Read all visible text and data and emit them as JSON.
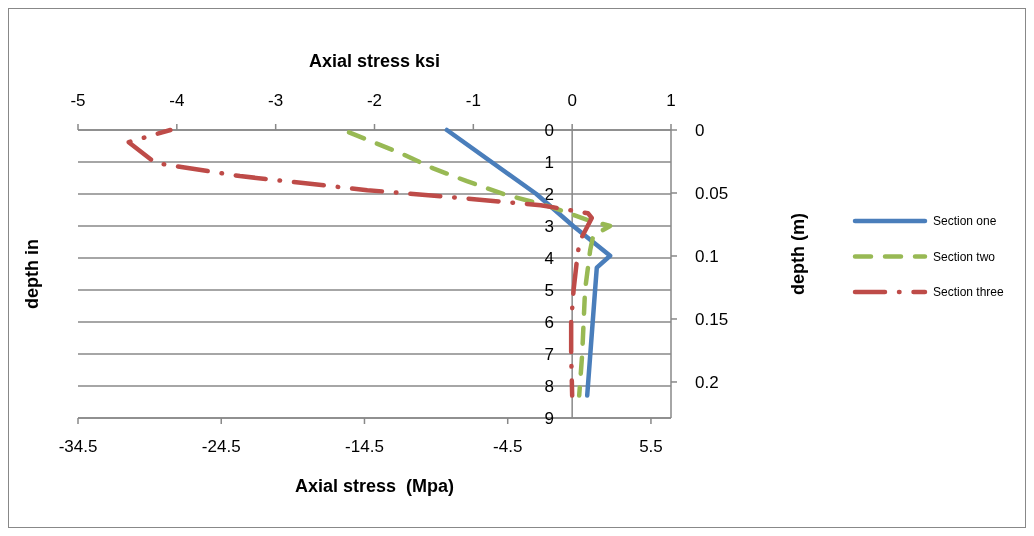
{
  "chart_data": {
    "type": "line",
    "xlabel": "Axial stress  (Mpa)",
    "x2label": "Axial stress ksi",
    "ylabel": "depth in",
    "y2label": "depth (m)",
    "xlim": [
      -34.5,
      6.9
    ],
    "xticks": [
      -34.5,
      -24.5,
      -14.5,
      -4.5,
      5.5
    ],
    "x2lim": [
      -5,
      1
    ],
    "x2ticks": [
      -5,
      -4,
      -3,
      -2,
      -1,
      0,
      1
    ],
    "ylim": [
      9,
      0
    ],
    "yticks": [
      0,
      1,
      2,
      3,
      4,
      5,
      6,
      7,
      8,
      9
    ],
    "y2lim": [
      0.2286,
      0
    ],
    "y2ticks": [
      0,
      0.05,
      0.1,
      0.15,
      0.2
    ],
    "grid": "y",
    "legend": "right",
    "series": [
      {
        "name": "Section one",
        "color": "#4a7ebb",
        "line_style": "solid",
        "x": [
          -8.75,
          -2.5,
          0.07,
          2.65,
          1.72,
          1.6,
          1.05
        ],
        "values": [
          0,
          2,
          3,
          3.93,
          4.3,
          5,
          8.3
        ]
      },
      {
        "name": "Section two",
        "color": "#98b954",
        "line_style": "dashed",
        "x": [
          -16,
          -12,
          -9.7,
          -7.35,
          -4.8,
          -1.5,
          1.0,
          2.65,
          1.47,
          1.26,
          0.9,
          0.7,
          0.49
        ],
        "values": [
          0,
          0.72,
          1.2,
          1.6,
          2,
          2.4,
          2.8,
          3.0,
          3.3,
          3.75,
          5,
          7,
          8.3
        ]
      },
      {
        "name": "Section three",
        "color": "#be4b48",
        "line_style": "dashdot",
        "x": [
          -28.05,
          -30.96,
          -29.1,
          -23.2,
          -14.3,
          -8.4,
          -2.2,
          1.1,
          1.37,
          0.5,
          0.3,
          0.1,
          -0.07,
          -0.07,
          0
        ],
        "values": [
          0,
          0.38,
          1.03,
          1.44,
          1.88,
          2.1,
          2.35,
          2.6,
          2.75,
          3.5,
          4.2,
          5,
          6,
          7,
          8.3
        ]
      }
    ]
  }
}
